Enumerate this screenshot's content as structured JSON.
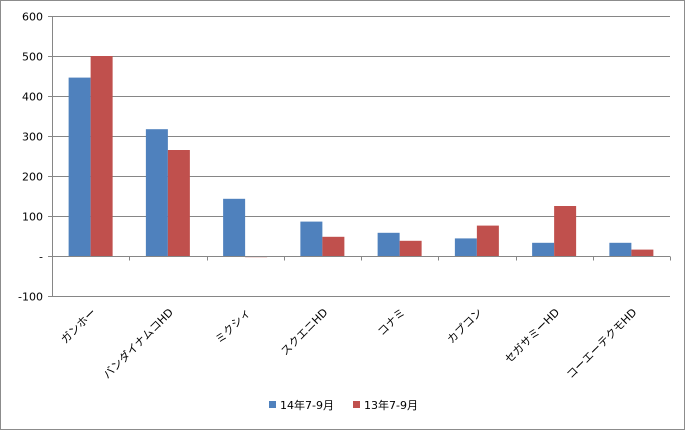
{
  "chart_data": {
    "type": "bar",
    "title": "",
    "xlabel": "",
    "ylabel": "",
    "ylim": [
      -100,
      600
    ],
    "y_ticks": [
      {
        "value": 600,
        "label": "600"
      },
      {
        "value": 500,
        "label": "500"
      },
      {
        "value": 400,
        "label": "400"
      },
      {
        "value": 300,
        "label": "300"
      },
      {
        "value": 200,
        "label": "200"
      },
      {
        "value": 100,
        "label": "100"
      },
      {
        "value": 0,
        "label": "-"
      },
      {
        "value": -100,
        "label": "-100"
      }
    ],
    "grid": true,
    "legend_position": "bottom",
    "categories": [
      "ガンホー",
      "バンダイナムコHD",
      "ミクシィ",
      "スクエニHD",
      "コナミ",
      "カプコン",
      "セガサミーHD",
      "コーエーテクモHD"
    ],
    "series": [
      {
        "name": "14年7-9月",
        "color": "#4f81bd",
        "values": [
          446,
          317,
          143,
          86,
          58,
          44,
          33,
          33
        ]
      },
      {
        "name": "13年7-9月",
        "color": "#c0504d",
        "values": [
          500,
          265,
          -3,
          48,
          38,
          76,
          125,
          16
        ]
      }
    ]
  }
}
